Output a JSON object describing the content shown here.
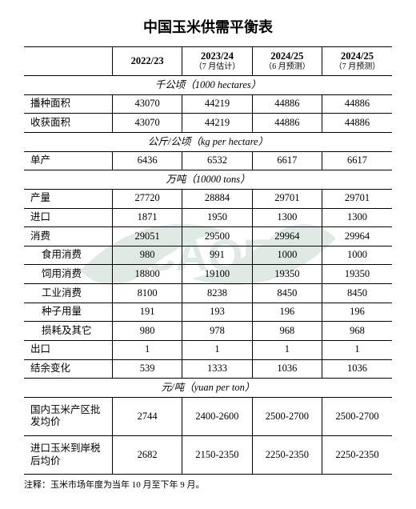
{
  "title": "中国玉米供需平衡表",
  "columns": {
    "blank": "",
    "c1": "2022/23",
    "c2": "2023/24",
    "c2_sub": "（7 月估计）",
    "c3": "2024/25",
    "c3_sub": "（6 月预测）",
    "c4": "2024/25",
    "c4_sub": "（7 月预测）"
  },
  "section_area": "千公顷（1000 hectares）",
  "rows_area": [
    {
      "label": "播种面积",
      "v": [
        "43070",
        "44219",
        "44886",
        "44886"
      ]
    },
    {
      "label": "收获面积",
      "v": [
        "43070",
        "44219",
        "44886",
        "44886"
      ]
    }
  ],
  "section_yield": "公斤/公顷（kg per hectare）",
  "rows_yield": [
    {
      "label": "单产",
      "v": [
        "6436",
        "6532",
        "6617",
        "6617"
      ]
    }
  ],
  "section_tons": "万吨（10000 tons）",
  "rows_tons": [
    {
      "label": "产量",
      "indent": false,
      "v": [
        "27720",
        "28884",
        "29701",
        "29701"
      ]
    },
    {
      "label": "进口",
      "indent": false,
      "v": [
        "1871",
        "1950",
        "1300",
        "1300"
      ]
    },
    {
      "label": "消费",
      "indent": false,
      "v": [
        "29051",
        "29500",
        "29964",
        "29964"
      ]
    },
    {
      "label": "食用消费",
      "indent": true,
      "v": [
        "980",
        "991",
        "1000",
        "1000"
      ]
    },
    {
      "label": "饲用消费",
      "indent": true,
      "v": [
        "18800",
        "19100",
        "19350",
        "19350"
      ]
    },
    {
      "label": "工业消费",
      "indent": true,
      "v": [
        "8100",
        "8238",
        "8450",
        "8450"
      ]
    },
    {
      "label": "种子用量",
      "indent": true,
      "v": [
        "191",
        "193",
        "196",
        "196"
      ]
    },
    {
      "label": "损耗及其它",
      "indent": true,
      "v": [
        "980",
        "978",
        "968",
        "968"
      ]
    },
    {
      "label": "出口",
      "indent": false,
      "v": [
        "1",
        "1",
        "1",
        "1"
      ]
    },
    {
      "label": "结余变化",
      "indent": false,
      "v": [
        "539",
        "1333",
        "1036",
        "1036"
      ]
    }
  ],
  "section_price": "元/吨（yuan per ton）",
  "rows_price": [
    {
      "label": "国内玉米产区批发均价",
      "v": [
        "2744",
        "2400-2600",
        "2500-2700",
        "2500-2700"
      ]
    },
    {
      "label": "进口玉米到岸税后均价",
      "v": [
        "2682",
        "2150-2350",
        "2250-2350",
        "2250-2350"
      ]
    }
  ],
  "note": "注释：玉米市场年度为当年 10 月至下年 9 月。",
  "style": {
    "watermark_color": "#2b7a4b",
    "border_color": "#000000",
    "background": "#ffffff",
    "title_fontsize": 18,
    "body_fontsize": 12.5
  }
}
